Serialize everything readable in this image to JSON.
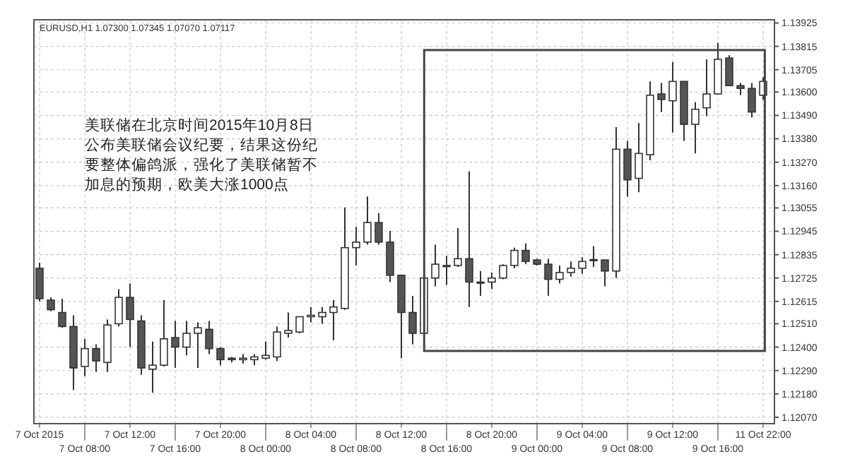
{
  "chart_data": {
    "type": "candlestick",
    "title": "EURUSD,H1 1.07300 1.07345 1.07070 1.07117",
    "annotations": [
      "美联储在北京时间2015年10月8日公布美联储会议纪要，结果这份纪要整体偏鸽派，强化了美联储暂不加息的预期，欧美大涨1000点"
    ],
    "categories": [
      "7 Oct 2015",
      null,
      null,
      null,
      "7 Oct 08:00",
      null,
      null,
      null,
      "7 Oct 12:00",
      null,
      null,
      null,
      "7 Oct 16:00",
      null,
      null,
      null,
      "7 Oct 20:00",
      null,
      null,
      null,
      "8 Oct 00:00",
      null,
      null,
      null,
      "8 Oct 04:00",
      null,
      null,
      null,
      "8 Oct 08:00",
      null,
      null,
      null,
      "8 Oct 12:00",
      null,
      null,
      null,
      "8 Oct 16:00",
      null,
      null,
      null,
      "8 Oct 20:00",
      null,
      null,
      null,
      "9 Oct 00:00",
      null,
      null,
      null,
      "9 Oct 04:00",
      null,
      null,
      null,
      "9 Oct 08:00",
      null,
      null,
      null,
      "9 Oct 12:00",
      null,
      null,
      null,
      "9 Oct 16:00",
      null,
      null,
      null,
      "11 Oct 22:00"
    ],
    "ohlc": [
      [
        1.12771,
        1.12797,
        1.12615,
        1.12628
      ],
      [
        1.12621,
        1.12634,
        1.12569,
        1.12576
      ],
      [
        1.12563,
        1.12628,
        1.12491,
        1.12497
      ],
      [
        1.12497,
        1.1255,
        1.12198,
        1.12302
      ],
      [
        1.12309,
        1.12439,
        1.12263,
        1.12393
      ],
      [
        1.12393,
        1.12413,
        1.12283,
        1.12335
      ],
      [
        1.12328,
        1.1253,
        1.12283,
        1.12504
      ],
      [
        1.1251,
        1.12673,
        1.12497,
        1.12634
      ],
      [
        1.12634,
        1.12699,
        1.124,
        1.1253
      ],
      [
        1.12523,
        1.1255,
        1.1227,
        1.12302
      ],
      [
        1.12296,
        1.12426,
        1.12185,
        1.12315
      ],
      [
        1.12315,
        1.12621,
        1.12309,
        1.12439
      ],
      [
        1.12445,
        1.12523,
        1.12302,
        1.124
      ],
      [
        1.124,
        1.12523,
        1.12361,
        1.12465
      ],
      [
        1.12465,
        1.12517,
        1.12302,
        1.12491
      ],
      [
        1.12484,
        1.12523,
        1.12367,
        1.12393
      ],
      [
        1.12393,
        1.124,
        1.12315,
        1.12341
      ],
      [
        1.12348,
        1.12354,
        1.12328,
        1.12341
      ],
      [
        1.12341,
        1.12367,
        1.12322,
        1.12348
      ],
      [
        1.12341,
        1.12367,
        1.12315,
        1.12354
      ],
      [
        1.12348,
        1.12426,
        1.12341,
        1.12361
      ],
      [
        1.12354,
        1.12497,
        1.12335,
        1.12471
      ],
      [
        1.12465,
        1.12563,
        1.12445,
        1.12478
      ],
      [
        1.12471,
        1.12543,
        1.12465,
        1.12543
      ],
      [
        1.12543,
        1.12589,
        1.12517,
        1.1255
      ],
      [
        1.12543,
        1.12589,
        1.1251,
        1.12563
      ],
      [
        1.12563,
        1.12621,
        1.12432,
        1.12589
      ],
      [
        1.12582,
        1.13057,
        1.12576,
        1.12868
      ],
      [
        1.12868,
        1.12966,
        1.12784,
        1.12894
      ],
      [
        1.12894,
        1.13109,
        1.12882,
        1.12986
      ],
      [
        1.12986,
        1.13031,
        1.12882,
        1.12894
      ],
      [
        1.12894,
        1.12947,
        1.12706,
        1.12738
      ],
      [
        1.12738,
        1.12738,
        1.12348,
        1.12563
      ],
      [
        1.12563,
        1.12641,
        1.12413,
        1.12465
      ],
      [
        1.12465,
        1.12751,
        1.12445,
        1.12725
      ],
      [
        1.12725,
        1.12882,
        1.12686,
        1.1279
      ],
      [
        1.12784,
        1.12829,
        1.12693,
        1.12781
      ],
      [
        1.12784,
        1.1296,
        1.12777,
        1.12816
      ],
      [
        1.12816,
        1.13227,
        1.12589,
        1.12706
      ],
      [
        1.12706,
        1.12758,
        1.12641,
        1.12703
      ],
      [
        1.12706,
        1.12751,
        1.12673,
        1.12725
      ],
      [
        1.12725,
        1.1279,
        1.12719,
        1.12784
      ],
      [
        1.12784,
        1.12868,
        1.12771,
        1.12855
      ],
      [
        1.12855,
        1.12888,
        1.1279,
        1.12803
      ],
      [
        1.1281,
        1.12816,
        1.12784,
        1.1279
      ],
      [
        1.1279,
        1.12816,
        1.12641,
        1.12719
      ],
      [
        1.12719,
        1.12784,
        1.12699,
        1.12751
      ],
      [
        1.12751,
        1.12803,
        1.12732,
        1.12771
      ],
      [
        1.12771,
        1.12823,
        1.12745,
        1.12803
      ],
      [
        1.1281,
        1.12875,
        1.12777,
        1.12812
      ],
      [
        1.1281,
        1.1281,
        1.12686,
        1.12758
      ],
      [
        1.12758,
        1.13435,
        1.12725,
        1.13331
      ],
      [
        1.13331,
        1.1337,
        1.13109,
        1.13187
      ],
      [
        1.13194,
        1.13454,
        1.13129,
        1.13311
      ],
      [
        1.13305,
        1.1365,
        1.13279,
        1.13585
      ],
      [
        1.13591,
        1.13643,
        1.13506,
        1.13565
      ],
      [
        1.13559,
        1.13741,
        1.13409,
        1.1365
      ],
      [
        1.1365,
        1.1365,
        1.1337,
        1.13448
      ],
      [
        1.13448,
        1.13552,
        1.13311,
        1.13519
      ],
      [
        1.13526,
        1.13754,
        1.13487,
        1.13591
      ],
      [
        1.13591,
        1.13832,
        1.13591,
        1.13754
      ],
      [
        1.1376,
        1.13773,
        1.1363,
        1.1363
      ],
      [
        1.1363,
        1.13643,
        1.13585,
        1.13617
      ],
      [
        1.13617,
        1.13643,
        1.1348,
        1.13506
      ],
      [
        1.13585,
        1.13669,
        1.13565,
        1.1365
      ]
    ],
    "colors": [
      "#555555",
      "#555555",
      "#555555",
      "#555555",
      "#ffffff",
      "#555555",
      "#ffffff",
      "#ffffff",
      "#555555",
      "#555555",
      "#ffffff",
      "#ffffff",
      "#555555",
      "#ffffff",
      "#ffffff",
      "#555555",
      "#555555",
      "#555555",
      "#ffffff",
      "#ffffff",
      "#ffffff",
      "#ffffff",
      "#ffffff",
      "#ffffff",
      "#ffffff",
      "#ffffff",
      "#ffffff",
      "#ffffff",
      "#ffffff",
      "#ffffff",
      "#555555",
      "#555555",
      "#555555",
      "#555555",
      "#ffffff",
      "#ffffff",
      "#555555",
      "#ffffff",
      "#555555",
      "#555555",
      "#ffffff",
      "#ffffff",
      "#ffffff",
      "#555555",
      "#555555",
      "#555555",
      "#ffffff",
      "#ffffff",
      "#ffffff",
      "#ffffff",
      "#555555",
      "#ffffff",
      "#555555",
      "#ffffff",
      "#ffffff",
      "#555555",
      "#ffffff",
      "#555555",
      "#ffffff",
      "#ffffff",
      "#ffffff",
      "#555555",
      "#555555",
      "#555555",
      "#ffffff"
    ],
    "ylim": [
      1.1204,
      1.1394
    ],
    "yticks": [
      1.13925,
      1.13815,
      1.13705,
      {
        "value": 1.136,
        "label": "1.13600"
      },
      {
        "value": 1.1349,
        "label": "1.13490"
      },
      {
        "value": 1.1338,
        "label": "1.13380"
      },
      {
        "value": 1.1327,
        "label": "1.13270"
      },
      {
        "value": 1.1316,
        "label": "1.13160"
      },
      1.13055,
      1.12945,
      1.12835,
      1.12725,
      1.12615,
      {
        "value": 1.1251,
        "label": "1.12510"
      },
      {
        "value": 1.124,
        "label": "1.12400"
      },
      {
        "value": 1.1229,
        "label": "1.12290"
      },
      {
        "value": 1.1218,
        "label": "1.12180"
      },
      {
        "value": 1.1207,
        "label": "1.12070"
      }
    ],
    "grid": true
  }
}
